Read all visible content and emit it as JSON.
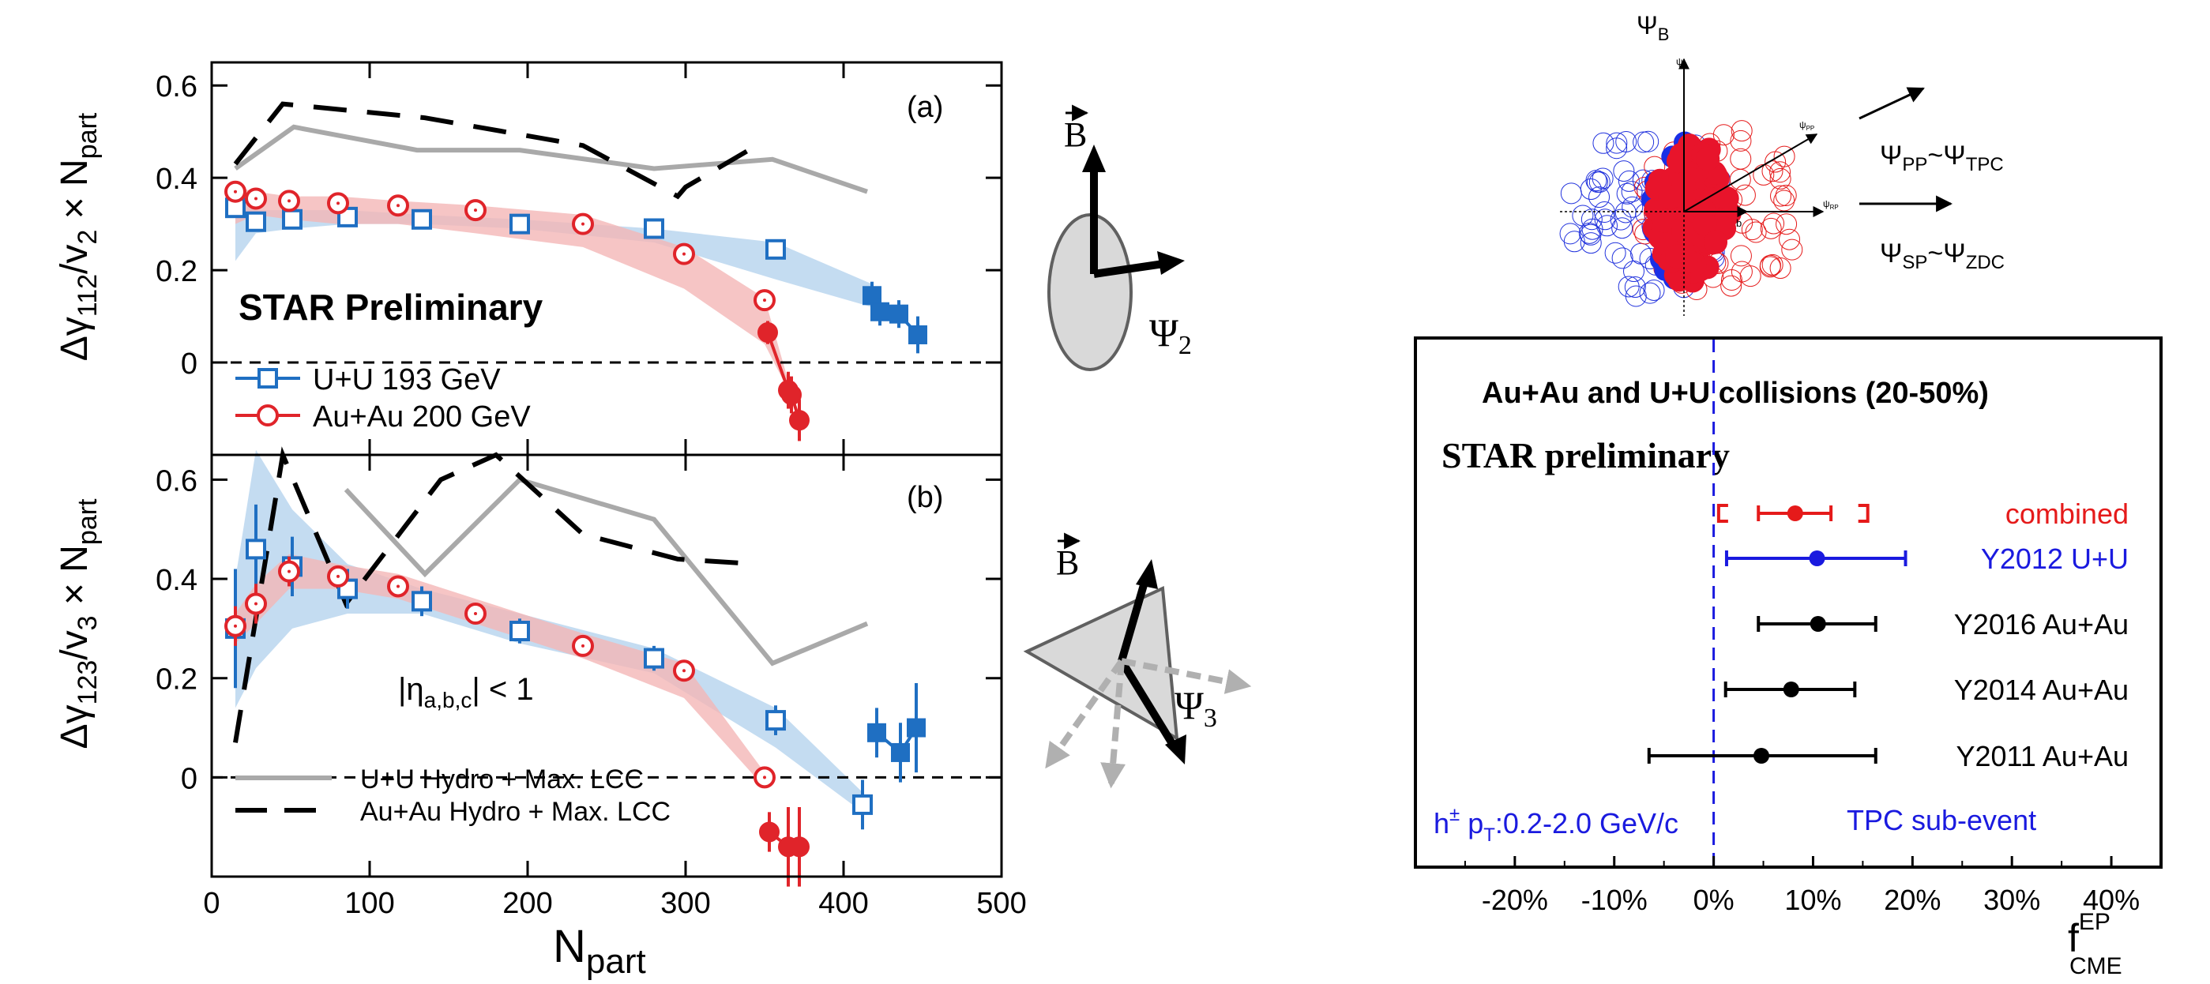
{
  "colors": {
    "uu": "#1f6fc2",
    "auau": "#e0242a",
    "uu_band": "#b5d3ee",
    "auau_band": "#f4b6b6",
    "hydro_uu": "#a9a9a9",
    "hydro_auau": "#000000",
    "blue_text": "#1a1adf",
    "red_text": "#e51a1a"
  },
  "left": {
    "xlabel_main": "N",
    "xlabel_sub": "part",
    "star_label": "STAR Preliminary",
    "eta_label": {
      "pre": "|η",
      "sub": "a,b,c",
      "post": "| < 1"
    }
  },
  "schematic": {
    "b_label": "B",
    "psi2": {
      "main": "Ψ",
      "sub": "2"
    },
    "psi3": {
      "main": "Ψ",
      "sub": "3"
    }
  },
  "collision": {
    "psi_b": {
      "main": "Ψ",
      "sub": "B"
    },
    "psi_b_small": {
      "main": "ψ",
      "sub": "B"
    },
    "psi_pp_small": {
      "main": "ψ",
      "sub": "PP"
    },
    "psi_rp_small": {
      "main": "ψ",
      "sub": "RP"
    },
    "b_small": "b",
    "pp_label": {
      "a": "Ψ",
      "a_sub": "PP",
      "mid": "~Ψ",
      "b_sub": "TPC"
    },
    "sp_label": {
      "a": "Ψ",
      "a_sub": "SP",
      "mid": "~Ψ",
      "b_sub": "ZDC"
    }
  },
  "chart_data": [
    {
      "type": "scatter",
      "panel_label": "(a)",
      "ylabel": {
        "a": "Δγ",
        "a_sub": "112",
        "b": "/v",
        "b_sub": "2",
        "c": " × N",
        "c_sub": "part"
      },
      "xlim": [
        0,
        500
      ],
      "ylim": [
        -0.2,
        0.65
      ],
      "xticks": [
        0,
        100,
        200,
        300,
        400,
        500
      ],
      "yticks": [
        0,
        0.2,
        0.4,
        0.6
      ],
      "ytick_labels": [
        "0",
        "0.2",
        "0.4",
        "0.6"
      ],
      "legend": [
        {
          "label": "U+U 193 GeV",
          "series": "uu"
        },
        {
          "label": "Au+Au 200 GeV",
          "series": "auau"
        }
      ],
      "series": [
        {
          "name": "U+U 193 GeV",
          "key": "uu",
          "marker": "open-square",
          "x": [
            15,
            28,
            51,
            86,
            133,
            195,
            280,
            357
          ],
          "y": [
            0.335,
            0.305,
            0.31,
            0.315,
            0.31,
            0.3,
            0.29,
            0.245
          ],
          "err": [
            0.02,
            0.02,
            0.015,
            0.015,
            0.015,
            0.015,
            0.015,
            0.02
          ]
        },
        {
          "name": "U+U 193 GeV (full-overlap)",
          "key": "uu",
          "marker": "filled-square",
          "x": [
            418,
            423,
            435,
            447
          ],
          "y": [
            0.145,
            0.11,
            0.105,
            0.06
          ],
          "err": [
            0.03,
            0.03,
            0.03,
            0.04
          ]
        },
        {
          "name": "Au+Au 200 GeV",
          "key": "auau",
          "marker": "open-circle",
          "x": [
            15,
            28,
            49,
            80,
            118,
            167,
            235,
            299,
            350
          ],
          "y": [
            0.37,
            0.355,
            0.35,
            0.345,
            0.34,
            0.33,
            0.3,
            0.235,
            0.135
          ],
          "err": [
            0.02,
            0.015,
            0.015,
            0.01,
            0.01,
            0.01,
            0.01,
            0.015,
            0.02
          ]
        },
        {
          "name": "Au+Au 200 GeV (full-overlap)",
          "key": "auau",
          "marker": "filled-circle",
          "x": [
            352,
            365,
            367,
            372
          ],
          "y": [
            0.065,
            -0.06,
            -0.07,
            -0.125
          ],
          "err": [
            0.025,
            0.04,
            0.04,
            0.045
          ]
        },
        {
          "name": "U+U Hydro + Max. LCC",
          "key": "hydro_uu",
          "marker": "line",
          "x": [
            15,
            52,
            130,
            195,
            280,
            355,
            415
          ],
          "y": [
            0.42,
            0.51,
            0.46,
            0.46,
            0.42,
            0.44,
            0.37
          ]
        },
        {
          "name": "Au+Au Hydro + Max. LCC",
          "key": "hydro_auau",
          "marker": "dashed",
          "x": [
            15,
            45,
            135,
            235,
            295,
            300,
            345
          ],
          "y": [
            0.43,
            0.56,
            0.53,
            0.47,
            0.36,
            0.38,
            0.47
          ]
        }
      ],
      "bands": [
        {
          "key": "uu",
          "x": [
            15,
            28,
            51,
            86,
            133,
            195,
            280,
            357,
            418
          ],
          "lower": [
            0.22,
            0.28,
            0.29,
            0.3,
            0.3,
            0.29,
            0.26,
            0.18,
            0.12
          ],
          "upper": [
            0.38,
            0.33,
            0.33,
            0.33,
            0.32,
            0.31,
            0.29,
            0.26,
            0.17
          ]
        },
        {
          "key": "auau",
          "x": [
            15,
            28,
            49,
            80,
            118,
            167,
            235,
            299,
            350,
            365
          ],
          "lower": [
            0.3,
            0.32,
            0.31,
            0.3,
            0.3,
            0.28,
            0.25,
            0.16,
            0.04,
            -0.06
          ],
          "upper": [
            0.38,
            0.37,
            0.36,
            0.36,
            0.35,
            0.34,
            0.32,
            0.25,
            0.14,
            -0.04
          ]
        }
      ]
    },
    {
      "type": "scatter",
      "panel_label": "(b)",
      "ylabel": {
        "a": "Δγ",
        "a_sub": "123",
        "b": "/v",
        "b_sub": "3",
        "c": " × N",
        "c_sub": "part"
      },
      "xlabel": "Npart",
      "xlim": [
        0,
        500
      ],
      "ylim": [
        -0.2,
        0.65
      ],
      "xticks": [
        0,
        100,
        200,
        300,
        400,
        500
      ],
      "xtick_labels": [
        "0",
        "100",
        "200",
        "300",
        "400",
        "500"
      ],
      "yticks": [
        0,
        0.2,
        0.4,
        0.6
      ],
      "ytick_labels": [
        "0",
        "0.2",
        "0.4",
        "0.6"
      ],
      "legend": [
        {
          "label": "U+U Hydro + Max. LCC",
          "series": "hydro_uu"
        },
        {
          "label": "Au+Au Hydro + Max. LCC",
          "series": "hydro_auau"
        }
      ],
      "series": [
        {
          "name": "U+U 193 GeV",
          "key": "uu",
          "marker": "open-square",
          "x": [
            15,
            28,
            51,
            86,
            133,
            195,
            280,
            357,
            412
          ],
          "y": [
            0.3,
            0.46,
            0.425,
            0.38,
            0.355,
            0.295,
            0.24,
            0.115,
            -0.055
          ],
          "err": [
            0.12,
            0.09,
            0.06,
            0.04,
            0.03,
            0.025,
            0.025,
            0.03,
            0.05
          ]
        },
        {
          "name": "U+U 193 GeV (full-overlap)",
          "key": "uu",
          "marker": "filled-square",
          "x": [
            421,
            436,
            446
          ],
          "y": [
            0.09,
            0.05,
            0.1
          ],
          "err": [
            0.05,
            0.06,
            0.09
          ]
        },
        {
          "name": "Au+Au 200 GeV",
          "key": "auau",
          "marker": "open-circle",
          "x": [
            15,
            28,
            49,
            80,
            118,
            167,
            235,
            299,
            350
          ],
          "y": [
            0.305,
            0.35,
            0.415,
            0.405,
            0.385,
            0.33,
            0.265,
            0.215,
            0.0
          ],
          "err": [
            0.04,
            0.04,
            0.03,
            0.02,
            0.015,
            0.015,
            0.015,
            0.02,
            0.01
          ]
        },
        {
          "name": "Au+Au 200 GeV (full-overlap)",
          "key": "auau",
          "marker": "filled-circle",
          "x": [
            353,
            365,
            372
          ],
          "y": [
            -0.11,
            -0.14,
            -0.14
          ],
          "err": [
            0.04,
            0.08,
            0.08
          ]
        },
        {
          "name": "U+U Hydro + Max. LCC",
          "key": "hydro_uu",
          "marker": "line",
          "x": [
            85,
            135,
            195,
            280,
            355,
            415
          ],
          "y": [
            0.58,
            0.41,
            0.6,
            0.52,
            0.23,
            0.31
          ]
        },
        {
          "name": "Au+Au Hydro + Max. LCC",
          "key": "hydro_auau",
          "marker": "dashed",
          "x": [
            15,
            45,
            85,
            145,
            180,
            235,
            295,
            345
          ],
          "y": [
            0.07,
            0.65,
            0.35,
            0.6,
            0.65,
            0.49,
            0.44,
            0.43
          ]
        }
      ],
      "bands": [
        {
          "key": "uu",
          "x": [
            15,
            28,
            51,
            86,
            133,
            195,
            280,
            357,
            412
          ],
          "lower": [
            0.14,
            0.22,
            0.3,
            0.33,
            0.33,
            0.27,
            0.21,
            0.06,
            -0.07
          ],
          "upper": [
            0.4,
            0.66,
            0.54,
            0.43,
            0.38,
            0.33,
            0.26,
            0.14,
            -0.03
          ]
        },
        {
          "key": "auau",
          "x": [
            15,
            28,
            49,
            80,
            118,
            167,
            235,
            299,
            350
          ],
          "lower": [
            0.27,
            0.31,
            0.38,
            0.38,
            0.36,
            0.31,
            0.24,
            0.16,
            -0.02
          ],
          "upper": [
            0.33,
            0.39,
            0.45,
            0.43,
            0.41,
            0.36,
            0.29,
            0.23,
            0.01
          ]
        }
      ]
    },
    {
      "type": "scatter",
      "title": "Au+Au and U+U collisions (20-50%)",
      "subtitle": "STAR preliminary",
      "xlabel": {
        "a": "f",
        "sup": "EP",
        "sub": "CME"
      },
      "xlim": [
        -30,
        45
      ],
      "xticks": [
        -20,
        -10,
        0,
        10,
        20,
        30,
        40
      ],
      "xtick_labels": [
        "-20%",
        "-10%",
        "0%",
        "10%",
        "20%",
        "30%",
        "40%"
      ],
      "annotations": {
        "left": {
          "a": "h",
          "sup": "±",
          "mid": " p",
          "sub": "T",
          "post": ":0.2-2.0 GeV/c"
        },
        "right": "TPC sub-event"
      },
      "rows": [
        {
          "label": "combined",
          "value": 8.2,
          "low": 4.5,
          "high": 11.8,
          "sys_low": 0.5,
          "sys_high": 15.5,
          "key": "red_text"
        },
        {
          "label": "Y2012 U+U",
          "value": 10.4,
          "low": 1.3,
          "high": 19.3,
          "key": "blue_text"
        },
        {
          "label": "Y2016 Au+Au",
          "value": 10.5,
          "low": 4.5,
          "high": 16.3,
          "key": "hydro_auau"
        },
        {
          "label": "Y2014 Au+Au",
          "value": 7.8,
          "low": 1.2,
          "high": 14.2,
          "key": "hydro_auau"
        },
        {
          "label": "Y2011 Au+Au",
          "value": 4.8,
          "low": -6.5,
          "high": 16.3,
          "key": "hydro_auau"
        }
      ]
    }
  ]
}
